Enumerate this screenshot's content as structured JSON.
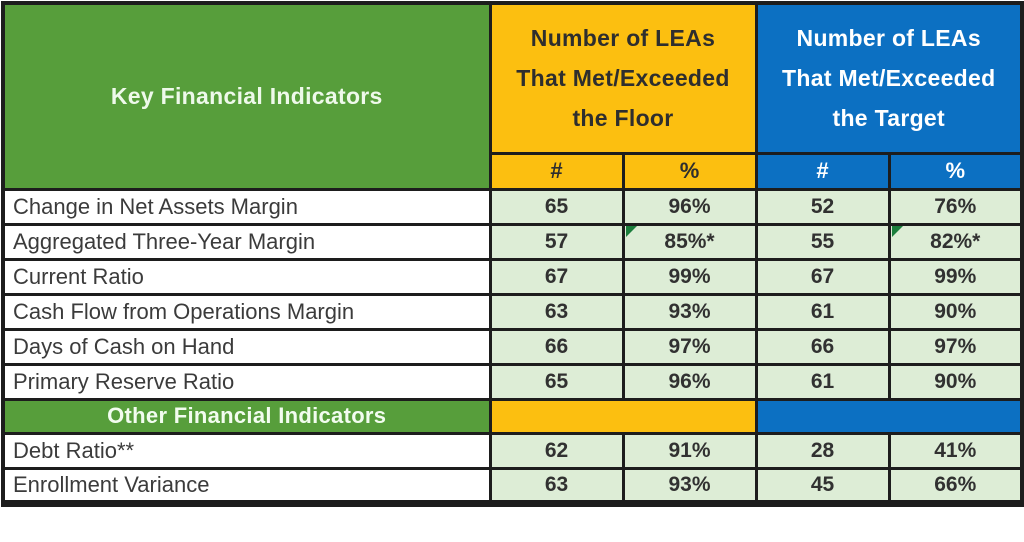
{
  "colors": {
    "header_green": "#579e3b",
    "header_orange": "#fcbf10",
    "header_blue": "#0c70c2",
    "cell_light_green": "#ddedd6",
    "border_black": "#1d1d1d",
    "flag_triangle_green": "#1b7e3c",
    "dark_text": "#313131",
    "light_text": "#ffffff"
  },
  "header": {
    "key_label": "Key Financial Indicators",
    "floor_label": "Number of LEAs That Met/Exceeded the Floor",
    "target_label": "Number of LEAs That Met/Exceeded the Target",
    "count_symbol": "#",
    "percent_symbol": "%"
  },
  "sections": {
    "other_label": "Other Financial Indicators"
  },
  "rows": [
    {
      "label": "Change in Net Assets Margin",
      "floor_count": "65",
      "floor_pct": "96%",
      "target_count": "52",
      "target_pct": "76%"
    },
    {
      "label": "Aggregated Three-Year Margin",
      "floor_count": "57",
      "floor_pct": "85%*",
      "target_count": "55",
      "target_pct": "82%*",
      "flagged": true
    },
    {
      "label": "Current Ratio",
      "floor_count": "67",
      "floor_pct": "99%",
      "target_count": "67",
      "target_pct": "99%"
    },
    {
      "label": "Cash Flow from Operations Margin",
      "floor_count": "63",
      "floor_pct": "93%",
      "target_count": "61",
      "target_pct": "90%"
    },
    {
      "label": "Days of Cash on Hand",
      "floor_count": "66",
      "floor_pct": "97%",
      "target_count": "66",
      "target_pct": "97%"
    },
    {
      "label": "Primary Reserve Ratio",
      "floor_count": "65",
      "floor_pct": "96%",
      "target_count": "61",
      "target_pct": "90%"
    }
  ],
  "other_rows": [
    {
      "label": "Debt Ratio**",
      "floor_count": "62",
      "floor_pct": "91%",
      "target_count": "28",
      "target_pct": "41%"
    },
    {
      "label": "Enrollment Variance",
      "floor_count": "63",
      "floor_pct": "93%",
      "target_count": "45",
      "target_pct": "66%"
    }
  ],
  "chart_data": {
    "type": "table",
    "title": "Key Financial Indicators - LEAs Met/Exceeded Floor and Target",
    "columns": [
      "Key Financial Indicators",
      "Floor #",
      "Floor %",
      "Target #",
      "Target %"
    ],
    "rows": [
      [
        "Change in Net Assets Margin",
        65,
        "96%",
        52,
        "76%"
      ],
      [
        "Aggregated Three-Year Margin",
        57,
        "85%*",
        55,
        "82%*"
      ],
      [
        "Current Ratio",
        67,
        "99%",
        67,
        "99%"
      ],
      [
        "Cash Flow from Operations Margin",
        63,
        "93%",
        61,
        "90%"
      ],
      [
        "Days of Cash on Hand",
        66,
        "97%",
        66,
        "97%"
      ],
      [
        "Primary Reserve Ratio",
        65,
        "96%",
        61,
        "90%"
      ],
      [
        "Other Financial Indicators",
        null,
        null,
        null,
        null
      ],
      [
        "Debt Ratio**",
        62,
        "91%",
        28,
        "41%"
      ],
      [
        "Enrollment Variance",
        63,
        "93%",
        45,
        "66%"
      ]
    ]
  }
}
